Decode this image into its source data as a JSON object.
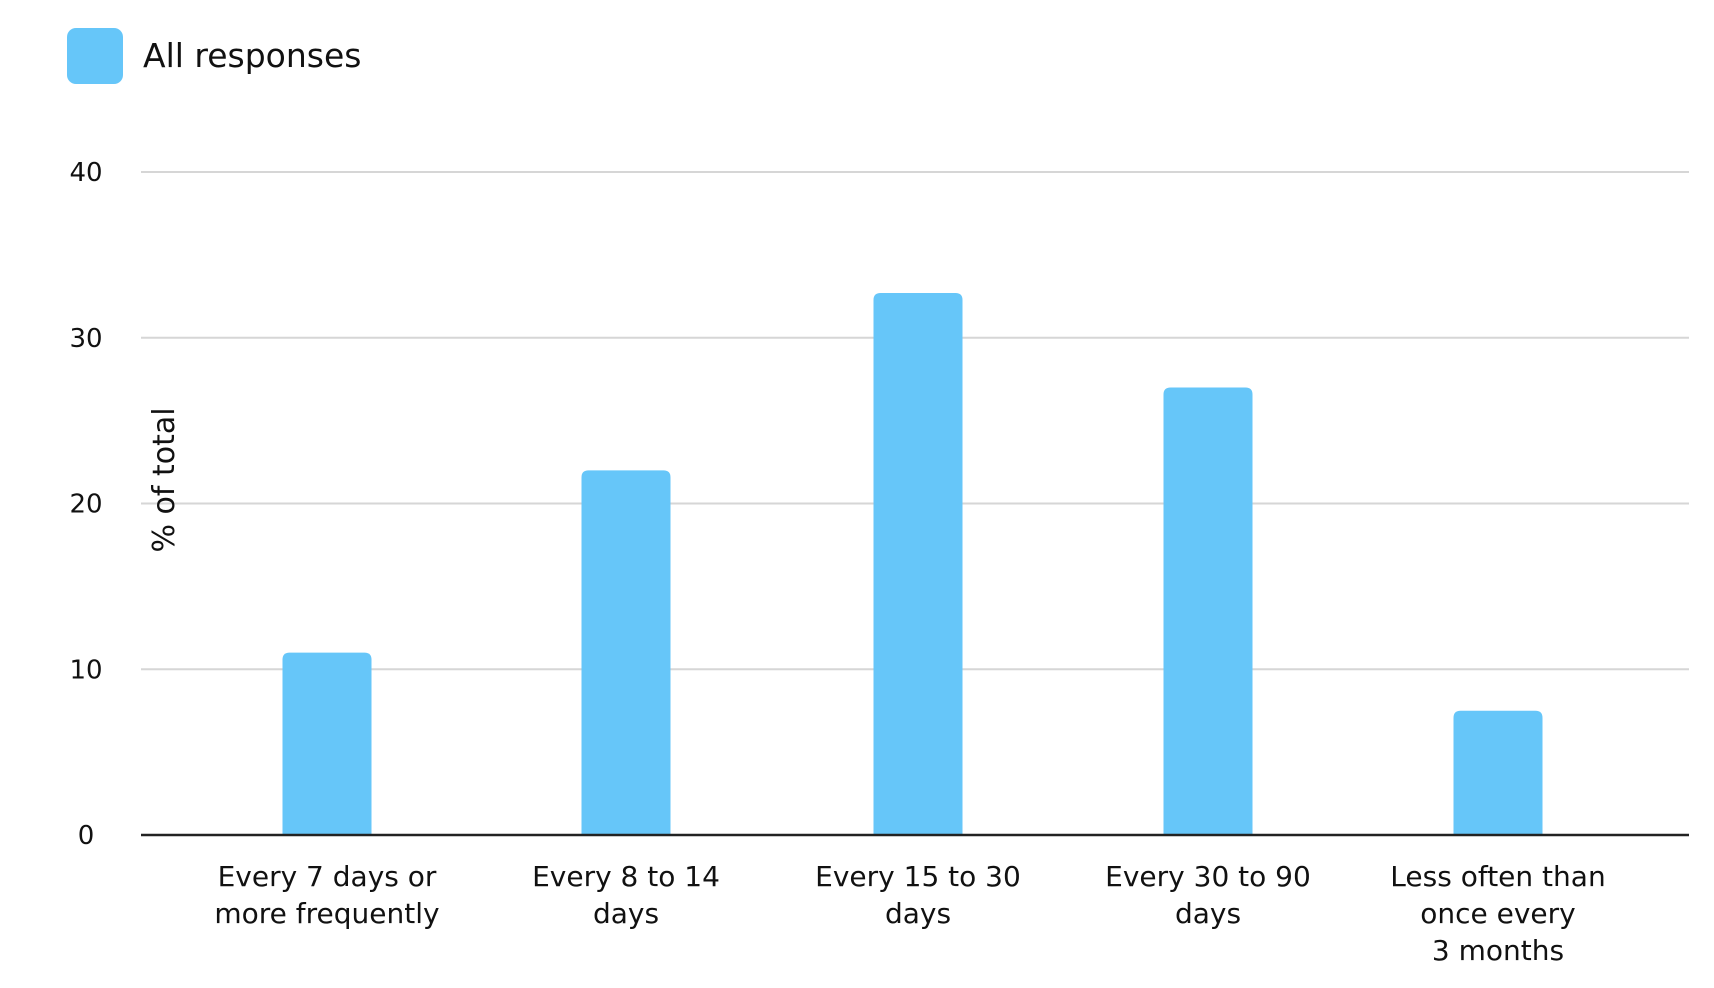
{
  "chart_data": {
    "type": "bar",
    "categories": [
      [
        "Every 7 days or",
        "more frequently"
      ],
      [
        "Every 8 to 14",
        "days"
      ],
      [
        "Every 15 to 30",
        "days"
      ],
      [
        "Every 30 to 90",
        "days"
      ],
      [
        "Less often than",
        "once every",
        "3 months"
      ]
    ],
    "series": [
      {
        "name": "All responses",
        "values": [
          11,
          22,
          32.7,
          27,
          7.5
        ],
        "color": "#66C6F9"
      }
    ],
    "xlabel": "",
    "ylabel": "% of total",
    "ylim": [
      0,
      40
    ],
    "yticks": [
      0,
      10,
      20,
      30,
      40
    ],
    "grid": true,
    "legend_position": "top-left"
  }
}
